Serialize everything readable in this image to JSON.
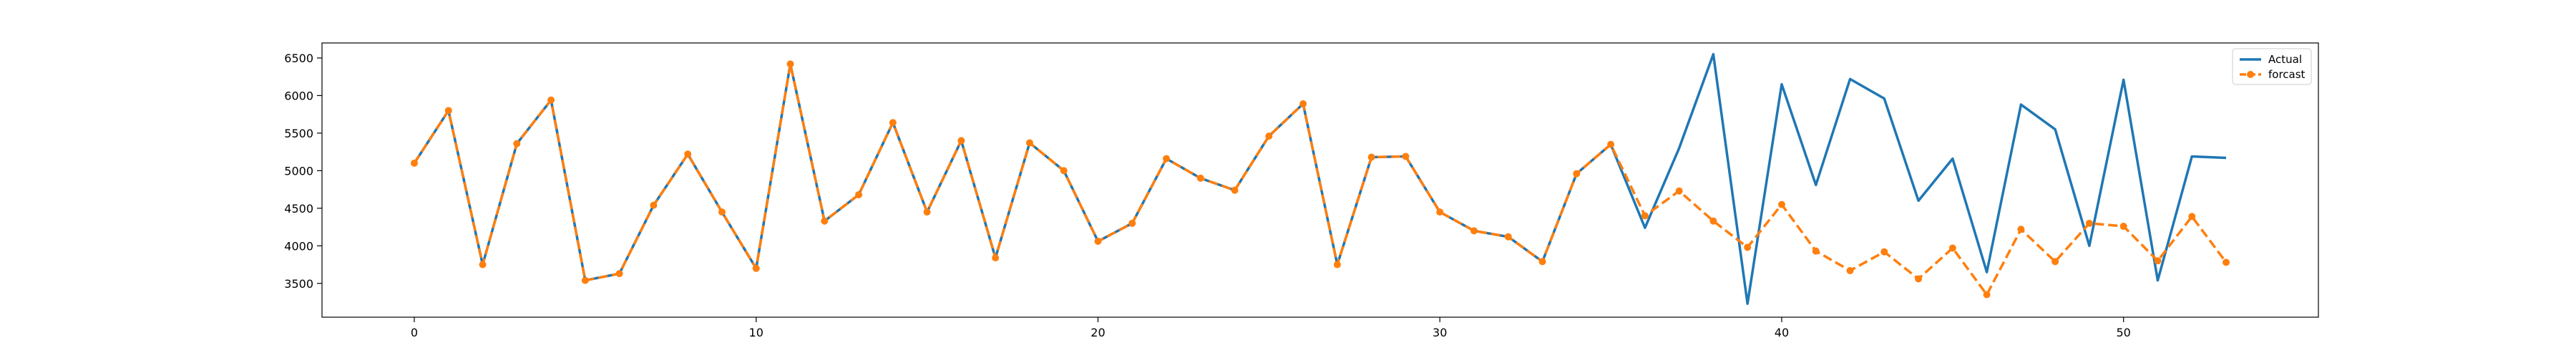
{
  "chart_data": {
    "type": "line",
    "title": "",
    "xlabel": "",
    "ylabel": "",
    "xlim": [
      -2.7,
      55.7
    ],
    "ylim": [
      3050,
      6700
    ],
    "xticks": [
      0,
      10,
      20,
      30,
      40,
      50
    ],
    "yticks": [
      3500,
      4000,
      4500,
      5000,
      5500,
      6000,
      6500
    ],
    "grid": false,
    "legend": {
      "position": "top-right",
      "entries": [
        "Actual",
        "forcast"
      ]
    },
    "series": [
      {
        "name": "Actual",
        "color": "#1f77b4",
        "style": "solid",
        "marker": "none",
        "x": [
          0,
          1,
          2,
          3,
          4,
          5,
          6,
          7,
          8,
          9,
          10,
          11,
          12,
          13,
          14,
          15,
          16,
          17,
          18,
          19,
          20,
          21,
          22,
          23,
          24,
          25,
          26,
          27,
          28,
          29,
          30,
          31,
          32,
          33,
          34,
          35,
          36,
          37,
          38,
          39,
          40,
          41,
          42,
          43,
          44,
          45,
          46,
          47,
          48,
          49,
          50,
          51,
          52,
          53
        ],
        "y": [
          5100,
          5800,
          3750,
          5360,
          5940,
          3540,
          3630,
          4540,
          5220,
          4450,
          3700,
          6420,
          4330,
          4680,
          5640,
          4450,
          5400,
          3840,
          5370,
          5000,
          4060,
          4300,
          5160,
          4900,
          4740,
          5460,
          5890,
          3750,
          5180,
          5190,
          4450,
          4200,
          4120,
          3790,
          4960,
          5350,
          4240,
          5300,
          6550,
          3230,
          6150,
          4810,
          6220,
          5960,
          4600,
          5160,
          3650,
          5880,
          5550,
          4000,
          6210,
          3540,
          5190,
          5170
        ]
      },
      {
        "name": "forcast",
        "color": "#ff7f0e",
        "style": "dashed",
        "marker": "circle",
        "x": [
          0,
          1,
          2,
          3,
          4,
          5,
          6,
          7,
          8,
          9,
          10,
          11,
          12,
          13,
          14,
          15,
          16,
          17,
          18,
          19,
          20,
          21,
          22,
          23,
          24,
          25,
          26,
          27,
          28,
          29,
          30,
          31,
          32,
          33,
          34,
          35,
          36,
          37,
          38,
          39,
          40,
          41,
          42,
          43,
          44,
          45,
          46,
          47,
          48,
          49,
          50,
          51,
          52,
          53
        ],
        "y": [
          5100,
          5800,
          3750,
          5360,
          5940,
          3540,
          3630,
          4540,
          5220,
          4450,
          3700,
          6420,
          4330,
          4680,
          5640,
          4450,
          5400,
          3840,
          5370,
          5000,
          4060,
          4300,
          5160,
          4900,
          4740,
          5460,
          5890,
          3750,
          5180,
          5190,
          4450,
          4200,
          4120,
          3790,
          4960,
          5350,
          4400,
          4730,
          4330,
          3980,
          4550,
          3930,
          3670,
          3920,
          3560,
          3970,
          3350,
          4220,
          3790,
          4300,
          4260,
          3800,
          4390,
          3780
        ]
      }
    ]
  }
}
